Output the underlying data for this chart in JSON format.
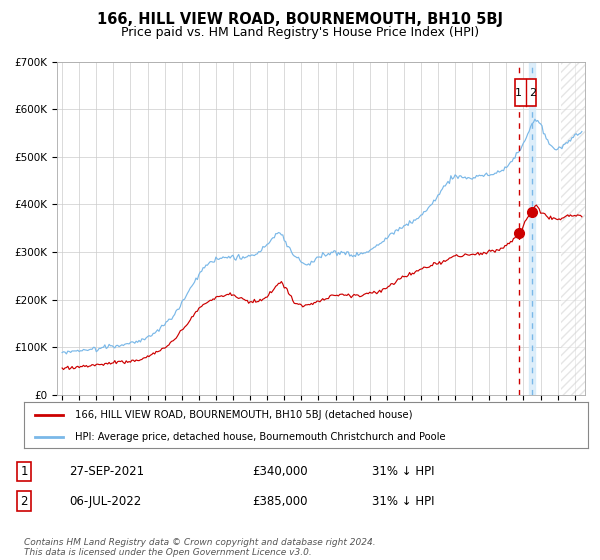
{
  "title": "166, HILL VIEW ROAD, BOURNEMOUTH, BH10 5BJ",
  "subtitle": "Price paid vs. HM Land Registry's House Price Index (HPI)",
  "title_fontsize": 10.5,
  "subtitle_fontsize": 9,
  "hpi_color": "#7ab8e8",
  "price_color": "#cc0000",
  "marker_color": "#cc0000",
  "vline1_color": "#cc0000",
  "vline2_color": "#7ab8e8",
  "vline_shade_color": "#d0e8f8",
  "grid_color": "#cccccc",
  "bg_color": "#ffffff",
  "legend_label_red": "166, HILL VIEW ROAD, BOURNEMOUTH, BH10 5BJ (detached house)",
  "legend_label_blue": "HPI: Average price, detached house, Bournemouth Christchurch and Poole",
  "transaction1_date": "27-SEP-2021",
  "transaction1_price": "£340,000",
  "transaction1_hpi": "31% ↓ HPI",
  "transaction2_date": "06-JUL-2022",
  "transaction2_price": "£385,000",
  "transaction2_hpi": "31% ↓ HPI",
  "footer": "Contains HM Land Registry data © Crown copyright and database right 2024.\nThis data is licensed under the Open Government Licence v3.0.",
  "ylim": [
    0,
    700000
  ],
  "yticks": [
    0,
    100000,
    200000,
    300000,
    400000,
    500000,
    600000,
    700000
  ],
  "ytick_labels": [
    "£0",
    "£100K",
    "£200K",
    "£300K",
    "£400K",
    "£500K",
    "£600K",
    "£700K"
  ],
  "vline1_x": 2021.75,
  "vline2_x": 2022.5,
  "marker1_x": 2021.75,
  "marker1_y": 340000,
  "marker2_x": 2022.5,
  "marker2_y": 385000,
  "xmin": 1994.7,
  "xmax": 2025.6,
  "hatch_start": 2024.2
}
